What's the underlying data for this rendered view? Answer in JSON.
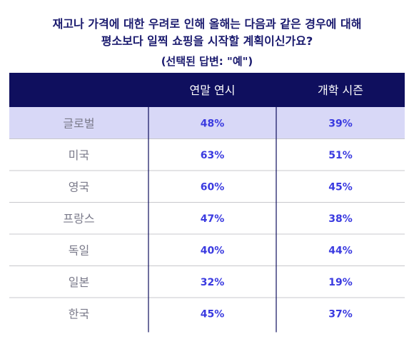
{
  "title_line1": "재고나 가격에 대한 우려로 인해 올해는 다음과 같은 경우에 대해",
  "title_line2": "평소보다 일찍 쇼핑을 시작할 계획이신가요?",
  "subtitle": "(선택된 답변: \"예\")",
  "colors": {
    "header_bg": "#0f0f5e",
    "header_text": "#ffffff",
    "highlight_row": "#d8d8f7",
    "value_text": "#3a3ae0",
    "label_text": "#7a7a8a",
    "divider": "#c8c8cc",
    "title_text": "#1a1a6e"
  },
  "chart_data": {
    "type": "table",
    "columns": [
      "연말 연시",
      "개학 시즌"
    ],
    "rows": [
      {
        "label": "글로벌",
        "values": [
          "48%",
          "39%"
        ],
        "highlight": true
      },
      {
        "label": "미국",
        "values": [
          "63%",
          "51%"
        ]
      },
      {
        "label": "영국",
        "values": [
          "60%",
          "45%"
        ]
      },
      {
        "label": "프랑스",
        "values": [
          "47%",
          "38%"
        ]
      },
      {
        "label": "독일",
        "values": [
          "40%",
          "44%"
        ]
      },
      {
        "label": "일본",
        "values": [
          "32%",
          "19%"
        ]
      },
      {
        "label": "한국",
        "values": [
          "45%",
          "37%"
        ]
      }
    ]
  }
}
